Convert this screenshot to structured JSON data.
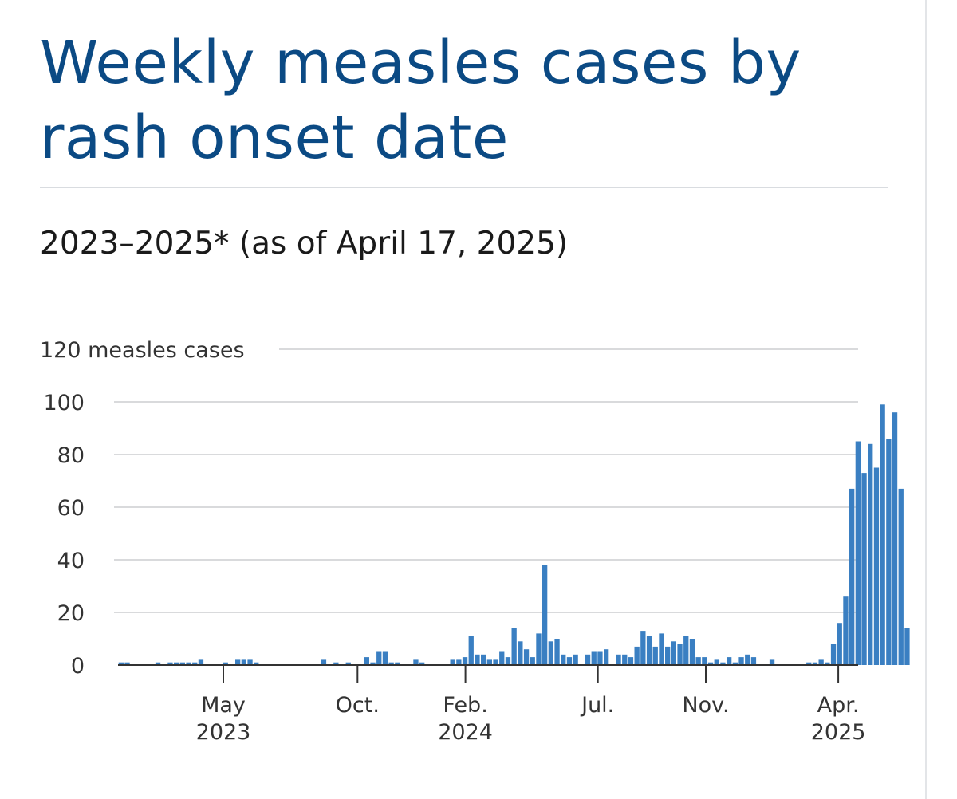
{
  "title": "Weekly measles cases by rash onset date",
  "subtitle": "2023–2025* (as of April 17, 2025)",
  "colors": {
    "title": "#0b4a84",
    "bar": "#3a7fc2",
    "grid": "#d9dadc",
    "axis": "#333333"
  },
  "chart_data": {
    "type": "bar",
    "title": "Weekly measles cases by rash onset date",
    "subtitle": "2023–2025* (as of April 17, 2025)",
    "ylabel": "measles cases",
    "ylim": [
      0,
      120
    ],
    "yticks": [
      0,
      20,
      40,
      60,
      80,
      100,
      120
    ],
    "ytick_labels": [
      "0",
      "20",
      "40",
      "60",
      "80",
      "100",
      "120 measles cases"
    ],
    "grid": true,
    "legend": "none",
    "x_start": "2023-01-01",
    "x_interval": "1 week",
    "xticks": [
      {
        "line1": "May",
        "line2": "2023",
        "date": "2023-05-01"
      },
      {
        "line1": "Oct.",
        "line2": "",
        "date": "2023-10-01"
      },
      {
        "line1": "Feb.",
        "line2": "2024",
        "date": "2024-02-01"
      },
      {
        "line1": "Jul.",
        "line2": "",
        "date": "2024-07-01"
      },
      {
        "line1": "Nov.",
        "line2": "",
        "date": "2024-11-01"
      },
      {
        "line1": "Apr.",
        "line2": "2025",
        "date": "2025-04-01"
      }
    ],
    "values": [
      1,
      1,
      0,
      0,
      0,
      0,
      1,
      0,
      1,
      1,
      1,
      1,
      1,
      2,
      0,
      0,
      0,
      1,
      0,
      2,
      2,
      2,
      1,
      0,
      0,
      0,
      0,
      0,
      0,
      0,
      0,
      0,
      0,
      2,
      0,
      1,
      0,
      1,
      0,
      0,
      3,
      1,
      5,
      5,
      1,
      1,
      0,
      0,
      2,
      1,
      0,
      0,
      0,
      0,
      2,
      2,
      3,
      11,
      4,
      4,
      2,
      2,
      5,
      3,
      14,
      9,
      6,
      3,
      12,
      38,
      9,
      10,
      4,
      3,
      4,
      0,
      4,
      5,
      5,
      6,
      0,
      4,
      4,
      3,
      7,
      13,
      11,
      7,
      12,
      7,
      9,
      8,
      11,
      10,
      3,
      3,
      1,
      2,
      1,
      3,
      1,
      3,
      4,
      3,
      0,
      0,
      2,
      0,
      0,
      0,
      0,
      0,
      1,
      1,
      2,
      1,
      8,
      16,
      26,
      67,
      85,
      73,
      84,
      75,
      99,
      86,
      96,
      67,
      14
    ]
  }
}
